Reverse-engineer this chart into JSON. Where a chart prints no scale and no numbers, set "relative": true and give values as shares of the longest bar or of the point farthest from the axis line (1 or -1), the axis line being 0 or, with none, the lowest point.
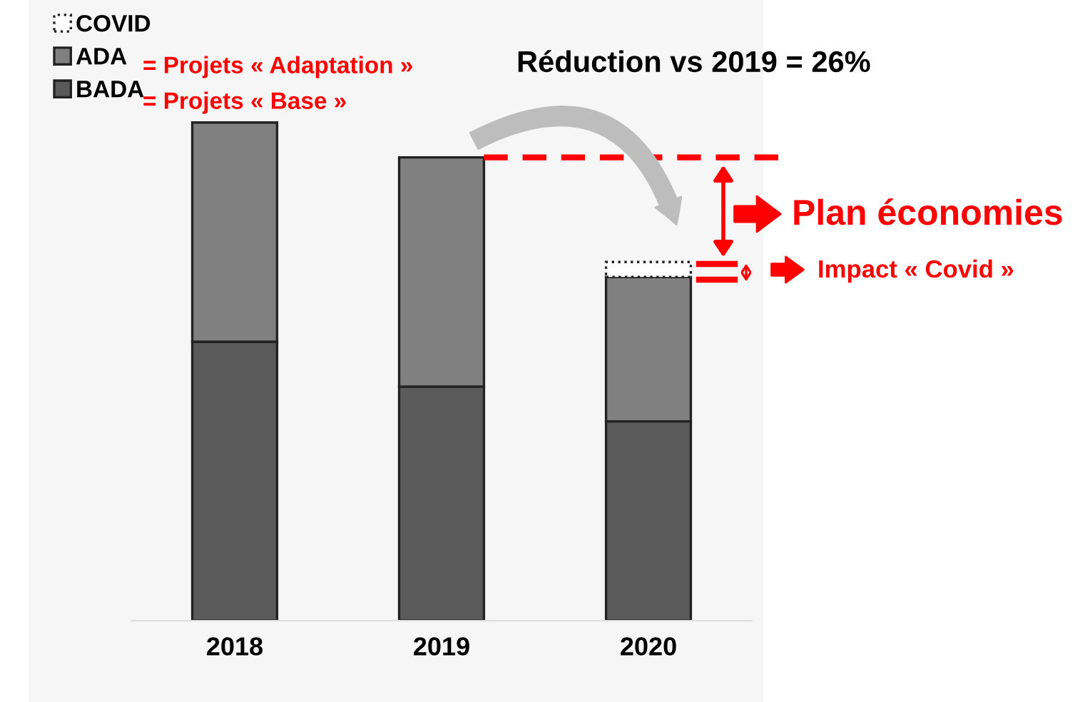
{
  "chart_data": {
    "type": "bar",
    "stacked": true,
    "relative": true,
    "categories": [
      "2018",
      "2019",
      "2020"
    ],
    "series": [
      {
        "name": "BADA",
        "color": "#5a5a5a",
        "values": [
          0.56,
          0.47,
          0.4
        ]
      },
      {
        "name": "ADA",
        "color": "#808080",
        "values": [
          0.44,
          0.46,
          0.29
        ]
      },
      {
        "name": "COVID",
        "color": "#ffffff",
        "values": [
          null,
          null,
          0.03
        ]
      }
    ],
    "legend": "top left",
    "grid": false,
    "ref_lines": [
      {
        "axis": "y",
        "value": 0.93,
        "color": "#ff0000",
        "line_style": "dashed"
      }
    ],
    "annotations": [
      "= Projets « Adaptation »",
      "= Projets « Base »",
      "Réduction vs 2019 = 26%",
      "Plan économies",
      "Impact « Covid »"
    ]
  }
}
